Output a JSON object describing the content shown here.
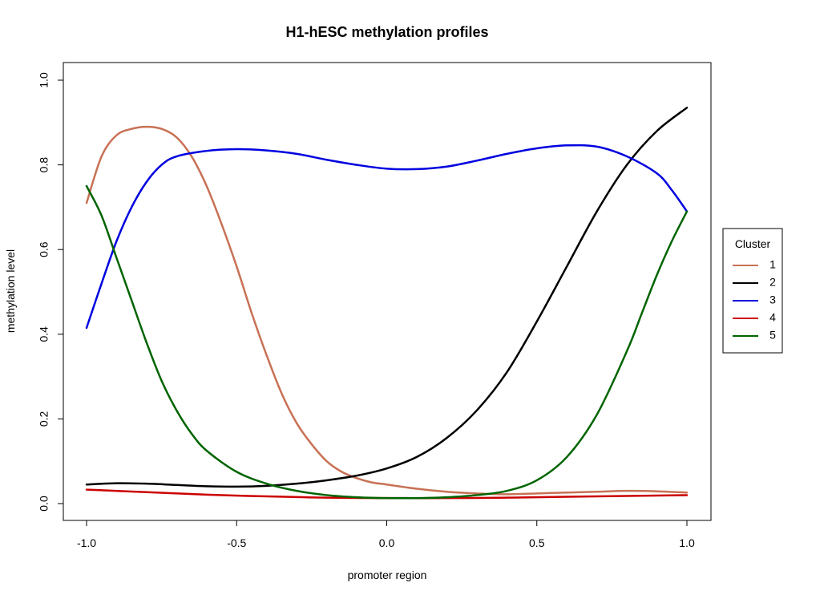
{
  "chart_data": {
    "type": "line",
    "title": "H1-hESC methylation profiles",
    "xlabel": "promoter region",
    "ylabel": "methylation level",
    "xlim": [
      -1.0,
      1.0
    ],
    "ylim": [
      0.0,
      1.0
    ],
    "x_ticks": [
      -1.0,
      -0.5,
      0.0,
      0.5,
      1.0
    ],
    "x_tick_labels": [
      "-1.0",
      "-0.5",
      "0.0",
      "0.5",
      "1.0"
    ],
    "y_ticks": [
      0.0,
      0.2,
      0.4,
      0.6,
      0.8,
      1.0
    ],
    "y_tick_labels": [
      "0.0",
      "0.2",
      "0.4",
      "0.6",
      "0.8",
      "1.0"
    ],
    "grid": false,
    "legend": {
      "title": "Cluster",
      "placement": "right"
    },
    "series": [
      {
        "name": "1",
        "color": "#c87155",
        "x": [
          -1.0,
          -0.95,
          -0.9,
          -0.85,
          -0.8,
          -0.75,
          -0.7,
          -0.65,
          -0.6,
          -0.55,
          -0.5,
          -0.45,
          -0.4,
          -0.35,
          -0.3,
          -0.25,
          -0.2,
          -0.15,
          -0.1,
          -0.05,
          0.0,
          0.1,
          0.2,
          0.3,
          0.4,
          0.5,
          0.6,
          0.7,
          0.8,
          0.9,
          1.0
        ],
        "values": [
          0.71,
          0.82,
          0.87,
          0.885,
          0.89,
          0.885,
          0.865,
          0.82,
          0.75,
          0.66,
          0.56,
          0.45,
          0.35,
          0.26,
          0.19,
          0.14,
          0.1,
          0.075,
          0.06,
          0.05,
          0.045,
          0.035,
          0.028,
          0.024,
          0.022,
          0.024,
          0.026,
          0.028,
          0.03,
          0.029,
          0.026
        ]
      },
      {
        "name": "2",
        "color": "#000000",
        "x": [
          -1.0,
          -0.9,
          -0.8,
          -0.7,
          -0.6,
          -0.5,
          -0.4,
          -0.3,
          -0.2,
          -0.1,
          0.0,
          0.1,
          0.2,
          0.3,
          0.4,
          0.5,
          0.6,
          0.7,
          0.8,
          0.9,
          1.0
        ],
        "values": [
          0.045,
          0.048,
          0.047,
          0.044,
          0.041,
          0.04,
          0.042,
          0.047,
          0.055,
          0.066,
          0.083,
          0.11,
          0.155,
          0.22,
          0.31,
          0.43,
          0.56,
          0.69,
          0.8,
          0.88,
          0.935
        ]
      },
      {
        "name": "3",
        "color": "#0000e0",
        "x": [
          -1.0,
          -0.95,
          -0.9,
          -0.85,
          -0.8,
          -0.75,
          -0.7,
          -0.6,
          -0.5,
          -0.4,
          -0.3,
          -0.2,
          -0.1,
          0.0,
          0.1,
          0.2,
          0.3,
          0.4,
          0.5,
          0.6,
          0.7,
          0.8,
          0.9,
          0.95,
          1.0
        ],
        "values": [
          0.415,
          0.52,
          0.62,
          0.7,
          0.76,
          0.8,
          0.82,
          0.833,
          0.837,
          0.834,
          0.826,
          0.812,
          0.8,
          0.791,
          0.79,
          0.796,
          0.81,
          0.826,
          0.839,
          0.846,
          0.843,
          0.82,
          0.78,
          0.74,
          0.69
        ]
      },
      {
        "name": "4",
        "color": "#cc0000",
        "x": [
          -1.0,
          -0.8,
          -0.6,
          -0.4,
          -0.2,
          0.0,
          0.2,
          0.4,
          0.6,
          0.8,
          1.0
        ],
        "values": [
          0.033,
          0.027,
          0.021,
          0.017,
          0.014,
          0.013,
          0.013,
          0.014,
          0.016,
          0.018,
          0.02
        ]
      },
      {
        "name": "5",
        "color": "#006400",
        "x": [
          -1.0,
          -0.95,
          -0.9,
          -0.85,
          -0.8,
          -0.75,
          -0.7,
          -0.65,
          -0.6,
          -0.5,
          -0.4,
          -0.3,
          -0.2,
          -0.1,
          0.0,
          0.1,
          0.2,
          0.3,
          0.4,
          0.5,
          0.6,
          0.7,
          0.8,
          0.85,
          0.9,
          0.95,
          1.0
        ],
        "values": [
          0.75,
          0.68,
          0.58,
          0.48,
          0.38,
          0.29,
          0.22,
          0.165,
          0.125,
          0.075,
          0.047,
          0.03,
          0.02,
          0.015,
          0.013,
          0.013,
          0.015,
          0.02,
          0.03,
          0.055,
          0.11,
          0.21,
          0.36,
          0.45,
          0.54,
          0.62,
          0.69
        ]
      }
    ]
  }
}
